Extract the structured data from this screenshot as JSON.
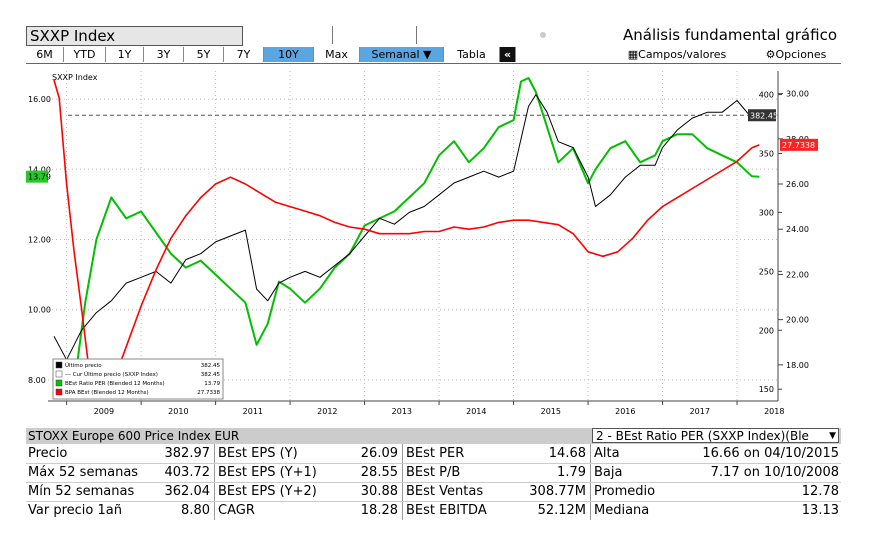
{
  "header": {
    "ticker": "SXXP Index",
    "title": "Análisis fundamental gráfico"
  },
  "buttons": {
    "periods": [
      "6M",
      "YTD",
      "1Y",
      "3Y",
      "5Y",
      "7Y",
      "10Y",
      "Max"
    ],
    "selected_period": "10Y",
    "frequency": "Semanal ▼",
    "table": "Tabla",
    "collapse": "«",
    "fields": "Campos/valores",
    "options": "Opciones"
  },
  "chart_data": {
    "type": "line",
    "chart_label": "SXXP Index",
    "x_ticks": [
      "2009",
      "2010",
      "2011",
      "2012",
      "2013",
      "2014",
      "2015",
      "2016",
      "2017",
      "2018"
    ],
    "left_axis": {
      "ticks": [
        "16.00",
        "14.00",
        "12.00",
        "10.00",
        "8.00"
      ],
      "range": [
        7.4,
        16.8
      ]
    },
    "right_price_axis": {
      "ticks": [
        "400",
        "350",
        "300",
        "250",
        "200",
        "150"
      ],
      "range": [
        140,
        420
      ]
    },
    "right_eps_axis": {
      "ticks": [
        "30.00",
        "28.00",
        "26.00",
        "24.00",
        "22.00",
        "20.00",
        "18.00"
      ],
      "range": [
        16.4,
        31.0
      ]
    },
    "markers": {
      "per_value": "13.79",
      "price_value": "382.45",
      "eps_value": "27.7338"
    },
    "reference_line": 382.45,
    "colors": {
      "price": "#000000",
      "per": "#00c000",
      "eps": "#ff0000",
      "last": "#444444"
    },
    "legend": [
      {
        "label": "Último precio",
        "value": "382.45",
        "color": "#000000"
      },
      {
        "label": "--- Cur Último precio (SXXP Index)",
        "value": "382.45",
        "color": "#ffffff"
      },
      {
        "label": "BEst Ratio PER (Blended 12 Months)",
        "value": "13.79",
        "color": "#00c000"
      },
      {
        "label": "BPA BEst (Blended 12 Months)",
        "value": "27.7338",
        "color": "#ff0000"
      }
    ],
    "series": [
      {
        "name": "Último precio",
        "x": [
          2008.83,
          2009.0,
          2009.2,
          2009.4,
          2009.6,
          2009.8,
          2010.0,
          2010.2,
          2010.4,
          2010.6,
          2010.8,
          2011.0,
          2011.2,
          2011.4,
          2011.55,
          2011.7,
          2011.85,
          2012.0,
          2012.2,
          2012.4,
          2012.6,
          2012.8,
          2013.0,
          2013.2,
          2013.4,
          2013.6,
          2013.8,
          2014.0,
          2014.2,
          2014.4,
          2014.6,
          2014.8,
          2015.0,
          2015.2,
          2015.3,
          2015.45,
          2015.6,
          2015.8,
          2016.0,
          2016.1,
          2016.3,
          2016.5,
          2016.7,
          2016.9,
          2017.0,
          2017.2,
          2017.4,
          2017.6,
          2017.8,
          2018.0,
          2018.2,
          2018.3
        ],
        "values": [
          195,
          175,
          200,
          215,
          225,
          240,
          245,
          250,
          240,
          260,
          265,
          275,
          280,
          285,
          235,
          225,
          240,
          245,
          250,
          245,
          255,
          265,
          280,
          295,
          290,
          300,
          305,
          315,
          325,
          330,
          335,
          330,
          335,
          390,
          400,
          385,
          360,
          355,
          330,
          305,
          315,
          330,
          340,
          340,
          355,
          370,
          380,
          385,
          385,
          395,
          380,
          382
        ]
      },
      {
        "name": "BEst Ratio PER (Blended 12 Months)",
        "x": [
          2008.83,
          2008.95,
          2009.05,
          2009.15,
          2009.25,
          2009.4,
          2009.6,
          2009.8,
          2010.0,
          2010.2,
          2010.4,
          2010.6,
          2010.8,
          2011.0,
          2011.2,
          2011.4,
          2011.55,
          2011.7,
          2011.85,
          2012.0,
          2012.2,
          2012.4,
          2012.6,
          2012.8,
          2013.0,
          2013.2,
          2013.4,
          2013.6,
          2013.8,
          2014.0,
          2014.2,
          2014.4,
          2014.6,
          2014.8,
          2015.0,
          2015.1,
          2015.2,
          2015.3,
          2015.45,
          2015.6,
          2015.8,
          2016.0,
          2016.1,
          2016.3,
          2016.5,
          2016.7,
          2016.9,
          2017.0,
          2017.2,
          2017.4,
          2017.6,
          2017.8,
          2018.0,
          2018.2,
          2018.3
        ],
        "values": [
          8.0,
          7.6,
          7.8,
          8.6,
          10.2,
          12.0,
          13.2,
          12.6,
          12.8,
          12.2,
          11.6,
          11.2,
          11.4,
          11.0,
          10.6,
          10.2,
          9.0,
          9.6,
          10.8,
          10.6,
          10.2,
          10.6,
          11.2,
          11.6,
          12.4,
          12.6,
          12.8,
          13.2,
          13.6,
          14.4,
          14.8,
          14.2,
          14.6,
          15.2,
          15.4,
          16.5,
          16.6,
          16.2,
          15.2,
          14.2,
          14.6,
          13.6,
          14.0,
          14.6,
          14.8,
          14.2,
          14.4,
          14.8,
          15.0,
          15.0,
          14.6,
          14.4,
          14.2,
          13.8,
          13.79
        ]
      },
      {
        "name": "BPA BEst (Blended 12 Months)",
        "x": [
          2008.83,
          2008.9,
          2009.0,
          2009.1,
          2009.2,
          2009.3,
          2009.45,
          2009.6,
          2009.8,
          2010.0,
          2010.2,
          2010.4,
          2010.6,
          2010.8,
          2011.0,
          2011.2,
          2011.4,
          2011.6,
          2011.8,
          2012.0,
          2012.2,
          2012.4,
          2012.6,
          2012.8,
          2013.0,
          2013.2,
          2013.4,
          2013.6,
          2013.8,
          2014.0,
          2014.2,
          2014.4,
          2014.6,
          2014.8,
          2015.0,
          2015.2,
          2015.4,
          2015.6,
          2015.8,
          2016.0,
          2016.2,
          2016.4,
          2016.6,
          2016.8,
          2017.0,
          2017.2,
          2017.4,
          2017.6,
          2017.8,
          2018.0,
          2018.2,
          2018.3
        ],
        "values": [
          30.6,
          29.8,
          26.0,
          23.0,
          20.5,
          17.8,
          16.6,
          17.0,
          18.8,
          20.6,
          22.2,
          23.6,
          24.6,
          25.4,
          26.0,
          26.3,
          26.0,
          25.6,
          25.2,
          25.0,
          24.8,
          24.6,
          24.3,
          24.1,
          24.0,
          23.8,
          23.8,
          23.8,
          23.9,
          23.9,
          24.1,
          24.0,
          24.1,
          24.3,
          24.4,
          24.4,
          24.3,
          24.2,
          23.8,
          23.0,
          22.8,
          23.0,
          23.6,
          24.4,
          25.0,
          25.4,
          25.8,
          26.2,
          26.6,
          27.0,
          27.6,
          27.73
        ]
      }
    ]
  },
  "table": {
    "left_header": "STOXX Europe 600 Price Index EUR",
    "right_header": "2 - BEst Ratio PER (SXXP Index)(Ble",
    "col1": [
      {
        "label": "Precio",
        "value": "382.97"
      },
      {
        "label": "Máx 52 semanas",
        "value": "403.72"
      },
      {
        "label": "Mín 52 semanas",
        "value": "362.04"
      },
      {
        "label": "Var precio 1añ",
        "value": "8.80"
      }
    ],
    "col2": [
      {
        "label": "BEst EPS (Y)",
        "value": "26.09"
      },
      {
        "label": "BEst EPS (Y+1)",
        "value": "28.55"
      },
      {
        "label": "BEst EPS (Y+2)",
        "value": "30.88"
      },
      {
        "label": "CAGR",
        "value": "18.28"
      }
    ],
    "col3": [
      {
        "label": "BEst PER",
        "value": "14.68"
      },
      {
        "label": "BEst P/B",
        "value": "1.79"
      },
      {
        "label": "BEst Ventas",
        "value": "308.77M"
      },
      {
        "label": "BEst EBITDA",
        "value": "52.12M"
      }
    ],
    "col4": [
      {
        "label": "Alta",
        "value": "16.66 on 04/10/2015"
      },
      {
        "label": "Baja",
        "value": "7.17 on 10/10/2008"
      },
      {
        "label": "Promedio",
        "value": "12.78"
      },
      {
        "label": "Mediana",
        "value": "13.13"
      }
    ]
  }
}
